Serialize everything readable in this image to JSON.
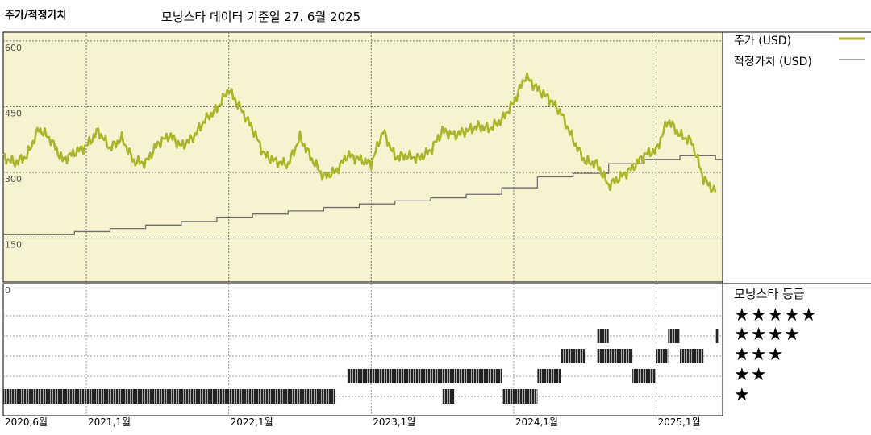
{
  "header": {
    "left_title": "주가/적정가치",
    "subtitle": "모닝스타 데이터 기준일 27. 6월 2025"
  },
  "chart_data": {
    "type": "line",
    "price_panel": {
      "y_ticks": [
        "600",
        "450",
        "300",
        "150"
      ],
      "ylim": [
        50,
        620
      ],
      "background": "#f7f3d1",
      "grid": true
    },
    "x_labels": [
      "2020,6월",
      "2021,1월",
      "2022,1월",
      "2023,1월",
      "2024,1월",
      "2025,1월"
    ],
    "xlim": [
      "2020-06",
      "2025-06"
    ],
    "series": [
      {
        "name": "주가 (USD)",
        "color": "#aab52a",
        "points": [
          [
            "2020-06",
            335
          ],
          [
            "2020-07",
            322
          ],
          [
            "2020-08",
            338
          ],
          [
            "2020-09",
            400
          ],
          [
            "2020-10",
            375
          ],
          [
            "2020-11",
            328
          ],
          [
            "2020-12",
            345
          ],
          [
            "2021-01",
            360
          ],
          [
            "2021-02",
            395
          ],
          [
            "2021-03",
            355
          ],
          [
            "2021-04",
            378
          ],
          [
            "2021-05",
            325
          ],
          [
            "2021-06",
            322
          ],
          [
            "2021-07",
            365
          ],
          [
            "2021-08",
            385
          ],
          [
            "2021-09",
            360
          ],
          [
            "2021-10",
            380
          ],
          [
            "2021-11",
            420
          ],
          [
            "2021-12",
            445
          ],
          [
            "2022-01",
            490
          ],
          [
            "2022-02",
            445
          ],
          [
            "2022-03",
            400
          ],
          [
            "2022-04",
            340
          ],
          [
            "2022-05",
            325
          ],
          [
            "2022-06",
            318
          ],
          [
            "2022-07",
            380
          ],
          [
            "2022-08",
            330
          ],
          [
            "2022-09",
            290
          ],
          [
            "2022-10",
            302
          ],
          [
            "2022-11",
            340
          ],
          [
            "2022-12",
            330
          ],
          [
            "2023-01",
            320
          ],
          [
            "2023-02",
            395
          ],
          [
            "2023-03",
            335
          ],
          [
            "2023-04",
            338
          ],
          [
            "2023-05",
            332
          ],
          [
            "2023-06",
            350
          ],
          [
            "2023-07",
            395
          ],
          [
            "2023-08",
            385
          ],
          [
            "2023-09",
            395
          ],
          [
            "2023-10",
            405
          ],
          [
            "2023-11",
            400
          ],
          [
            "2023-12",
            420
          ],
          [
            "2024-01",
            460
          ],
          [
            "2024-02",
            520
          ],
          [
            "2024-03",
            490
          ],
          [
            "2024-04",
            468
          ],
          [
            "2024-05",
            435
          ],
          [
            "2024-06",
            375
          ],
          [
            "2024-07",
            325
          ],
          [
            "2024-08",
            320
          ],
          [
            "2024-09",
            270
          ],
          [
            "2024-10",
            290
          ],
          [
            "2024-11",
            310
          ],
          [
            "2024-12",
            340
          ],
          [
            "2025-01",
            350
          ],
          [
            "2025-02",
            420
          ],
          [
            "2025-03",
            385
          ],
          [
            "2025-04",
            370
          ],
          [
            "2025-05",
            285
          ],
          [
            "2025-06",
            255
          ]
        ]
      },
      {
        "name": "적정가치 (USD)",
        "color": "#6f6f6f",
        "step_points": [
          [
            "2020-06",
            158
          ],
          [
            "2020-12",
            165
          ],
          [
            "2021-03",
            172
          ],
          [
            "2021-06",
            180
          ],
          [
            "2021-09",
            188
          ],
          [
            "2021-12",
            198
          ],
          [
            "2022-03",
            205
          ],
          [
            "2022-06",
            212
          ],
          [
            "2022-09",
            220
          ],
          [
            "2022-12",
            228
          ],
          [
            "2023-03",
            235
          ],
          [
            "2023-06",
            242
          ],
          [
            "2023-09",
            250
          ],
          [
            "2023-12",
            265
          ],
          [
            "2024-03",
            290
          ],
          [
            "2024-06",
            298
          ],
          [
            "2024-09",
            320
          ],
          [
            "2024-12",
            330
          ],
          [
            "2025-03",
            338
          ],
          [
            "2025-06",
            330
          ]
        ]
      }
    ],
    "rating_panel": {
      "title": "모닝스타 등급",
      "top_label": "0",
      "levels": [
        "★★★★★",
        "★★★★",
        "★★★",
        "★★",
        "★"
      ],
      "segments": [
        {
          "stars": 1,
          "from": "2020-06",
          "to": "2022-10"
        },
        {
          "stars": 1,
          "from": "2023-07",
          "to": "2023-08"
        },
        {
          "stars": 1,
          "from": "2023-12",
          "to": "2024-03"
        },
        {
          "stars": 2,
          "from": "2022-11",
          "to": "2023-08"
        },
        {
          "stars": 2,
          "from": "2023-08",
          "to": "2023-12"
        },
        {
          "stars": 2,
          "from": "2024-03",
          "to": "2024-05"
        },
        {
          "stars": 2,
          "from": "2024-11",
          "to": "2025-01"
        },
        {
          "stars": 3,
          "from": "2024-05",
          "to": "2024-07"
        },
        {
          "stars": 3,
          "from": "2024-08",
          "to": "2024-11"
        },
        {
          "stars": 3,
          "from": "2025-01",
          "to": "2025-02"
        },
        {
          "stars": 3,
          "from": "2025-03",
          "to": "2025-05"
        },
        {
          "stars": 4,
          "from": "2024-08",
          "to": "2024-09"
        },
        {
          "stars": 4,
          "from": "2025-02",
          "to": "2025-03"
        },
        {
          "stars": 4,
          "from": "2025-06",
          "to": "2025-06"
        }
      ]
    }
  }
}
